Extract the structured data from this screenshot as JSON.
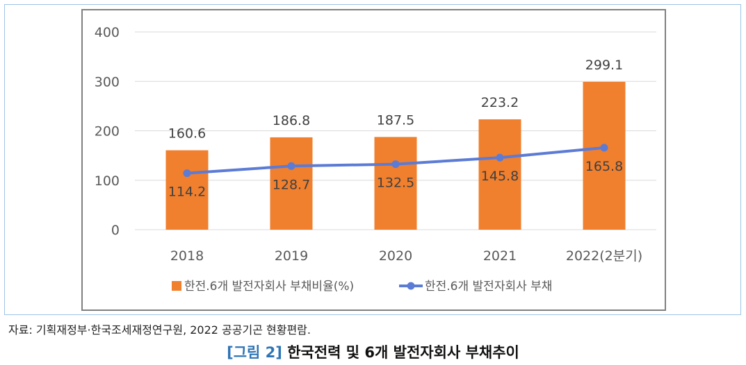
{
  "chart_data": {
    "type": "bar",
    "categories": [
      "2018",
      "2019",
      "2020",
      "2021",
      "2022(2분기)"
    ],
    "ylim": [
      0,
      400
    ],
    "yticks": [
      0,
      100,
      200,
      300,
      400
    ],
    "grid": true,
    "legend_position": "bottom",
    "series": [
      {
        "name": "한전.6개 발전자회사 부채비율(%)",
        "type": "bar",
        "color": "#f07f2e",
        "values": [
          160.6,
          186.8,
          187.5,
          223.2,
          299.1
        ]
      },
      {
        "name": "한전.6개 발전자회사 부채",
        "type": "line",
        "color": "#5b7bd5",
        "values": [
          114.2,
          128.7,
          132.5,
          145.8,
          165.8
        ]
      }
    ]
  },
  "source_note": "자료: 기획재정부·한국조세재정연구원, 2022 공공기곤 현황편람.",
  "caption": {
    "figure_no": "[그림 2]",
    "title": "한국전력 및 6개 발전자회사 부채추이"
  }
}
